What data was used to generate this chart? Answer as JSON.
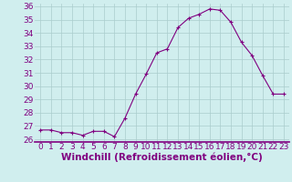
{
  "x": [
    0,
    1,
    2,
    3,
    4,
    5,
    6,
    7,
    8,
    9,
    10,
    11,
    12,
    13,
    14,
    15,
    16,
    17,
    18,
    19,
    20,
    21,
    22,
    23
  ],
  "y": [
    26.7,
    26.7,
    26.5,
    26.5,
    26.3,
    26.6,
    26.6,
    26.2,
    27.6,
    29.4,
    30.9,
    32.5,
    32.8,
    34.4,
    35.1,
    35.4,
    35.8,
    35.7,
    34.8,
    33.3,
    32.3,
    30.8,
    29.4,
    29.4
  ],
  "line_color": "#800080",
  "marker": "+",
  "xlabel": "Windchill (Refroidissement éolien,°C)",
  "xlim": [
    -0.5,
    23.5
  ],
  "ylim": [
    25.8,
    36.2
  ],
  "yticks": [
    26,
    27,
    28,
    29,
    30,
    31,
    32,
    33,
    34,
    35,
    36
  ],
  "xticks": [
    0,
    1,
    2,
    3,
    4,
    5,
    6,
    7,
    8,
    9,
    10,
    11,
    12,
    13,
    14,
    15,
    16,
    17,
    18,
    19,
    20,
    21,
    22,
    23
  ],
  "bg_color": "#d0eeee",
  "grid_color": "#aacccc",
  "font_color": "#800080",
  "tick_fontsize": 6.5,
  "xlabel_fontsize": 7.5
}
